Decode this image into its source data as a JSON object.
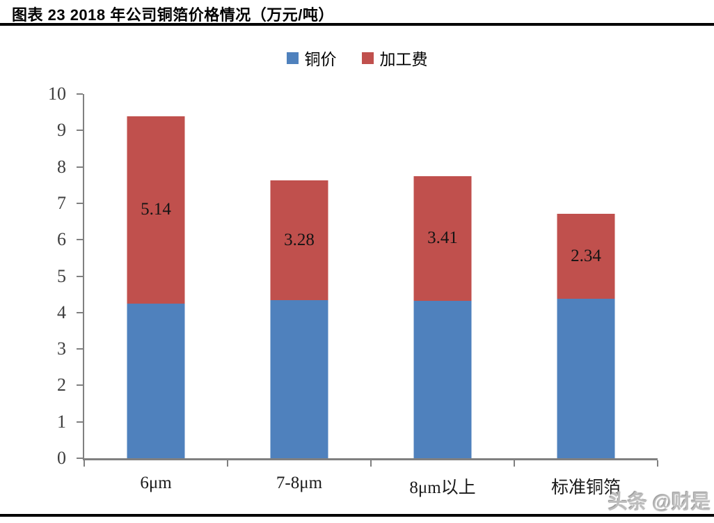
{
  "page": {
    "title": "图表 23 2018 年公司铜箔价格情况（万元/吨）",
    "watermark": "头条 @财是"
  },
  "chart_data": {
    "type": "bar",
    "stacked": true,
    "title": "图表 23 2018 年公司铜箔价格情况（万元/吨）",
    "unit": "万元/吨",
    "categories": [
      "6μm",
      "7-8μm",
      "8μm以上",
      "标准铜箔"
    ],
    "series": [
      {
        "name": "铜价",
        "color": "#4F81BD",
        "values": [
          4.25,
          4.35,
          4.33,
          4.37
        ],
        "labels": null
      },
      {
        "name": "加工费",
        "color": "#C0504D",
        "values": [
          5.14,
          3.28,
          3.41,
          2.34
        ],
        "labels": [
          "5.14",
          "3.28",
          "3.41",
          "2.34"
        ]
      }
    ],
    "xlabel": "",
    "ylabel": "",
    "ylim": [
      0,
      10
    ],
    "yticks": [
      0,
      1,
      2,
      3,
      4,
      5,
      6,
      7,
      8,
      9,
      10
    ],
    "grid": false,
    "legend_position": "top-center",
    "axis_color": "#808080",
    "tick_label_color": "#3d3d3d"
  }
}
